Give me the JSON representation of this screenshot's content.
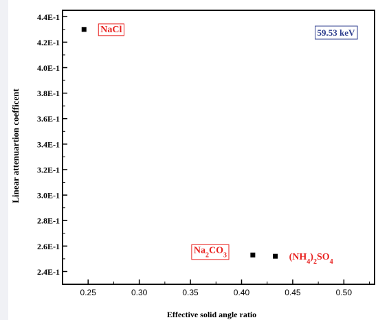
{
  "chart_data": {
    "type": "scatter",
    "xlabel": "Effective solid angle ratio",
    "ylabel": "Linear attenuartion coefficent",
    "xlim": [
      0.225,
      0.53
    ],
    "ylim": [
      0.23,
      0.445
    ],
    "x_ticks": [
      {
        "value": 0.25,
        "label": "0.25"
      },
      {
        "value": 0.3,
        "label": "0.30"
      },
      {
        "value": 0.35,
        "label": "0.35"
      },
      {
        "value": 0.4,
        "label": "0.40"
      },
      {
        "value": 0.45,
        "label": "0.45"
      },
      {
        "value": 0.5,
        "label": "0.50"
      }
    ],
    "y_ticks": [
      {
        "value": 0.24,
        "label": "2.4E-1"
      },
      {
        "value": 0.26,
        "label": "2.6E-1"
      },
      {
        "value": 0.28,
        "label": "2.8E-1"
      },
      {
        "value": 0.3,
        "label": "3.0E-1"
      },
      {
        "value": 0.32,
        "label": "3.2E-1"
      },
      {
        "value": 0.34,
        "label": "3.4E-1"
      },
      {
        "value": 0.36,
        "label": "3.6E-1"
      },
      {
        "value": 0.38,
        "label": "3.8E-1"
      },
      {
        "value": 0.4,
        "label": "4.0E-1"
      },
      {
        "value": 0.42,
        "label": "4.2E-1"
      },
      {
        "value": 0.44,
        "label": "4.4E-1"
      }
    ],
    "points": [
      {
        "x": 0.246,
        "y": 0.43,
        "label": "NaCl",
        "boxed": true
      },
      {
        "x": 0.411,
        "y": 0.253,
        "label": "Na2CO3",
        "boxed": true
      },
      {
        "x": 0.433,
        "y": 0.252,
        "label": "(NH4)2SO4",
        "boxed": false
      }
    ],
    "annotation": "59.53 keV",
    "grid": false,
    "colors": {
      "marker": "#000000",
      "label_text": "#e8211f",
      "annotation_text": "#2f3f8f",
      "left_strip": "#f0f1f5"
    }
  }
}
